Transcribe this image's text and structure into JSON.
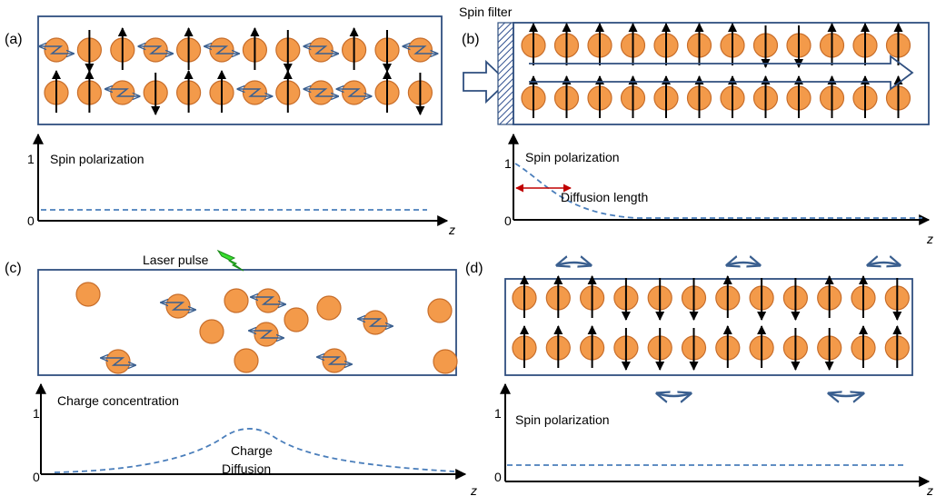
{
  "panels": [
    {
      "label": "(a)",
      "axis": {
        "y_label": "Spin polarization",
        "y_top": "1",
        "y_bottom": "0",
        "x_label": "z"
      }
    },
    {
      "label": "(b)",
      "filter": "Spin filter",
      "annotation": "Diffusion length",
      "axis": {
        "y_label": "Spin polarization",
        "y_top": "1",
        "y_bottom": "0",
        "x_label": "z"
      }
    },
    {
      "label": "(c)",
      "laser": "Laser pulse",
      "annotation": [
        "Charge",
        "Diffusion"
      ],
      "axis": {
        "y_label": "Charge concentration",
        "y_top": "1",
        "y_bottom": "0",
        "x_label": "z"
      }
    },
    {
      "label": "(d)",
      "axis": {
        "y_label": "Spin polarization",
        "y_top": "1",
        "y_bottom": "0",
        "x_label": "z"
      }
    }
  ]
}
